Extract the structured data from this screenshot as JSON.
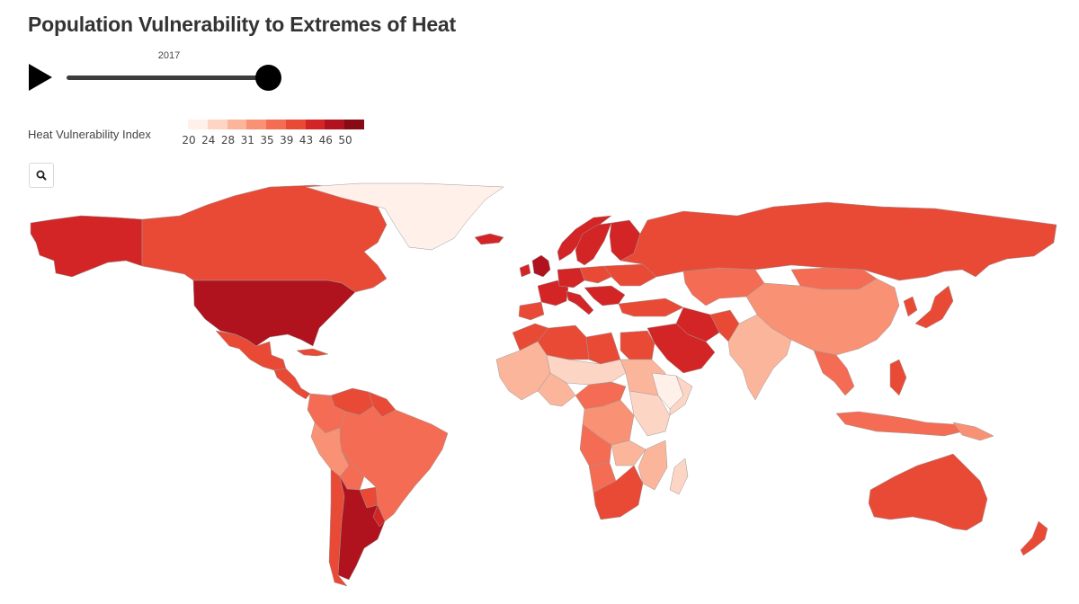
{
  "title": "Population Vulnerability to Extremes of Heat",
  "controls": {
    "play_icon": "play-icon",
    "slider_value": "2017",
    "slider_fraction": 1.0,
    "zoom_icon": "search-icon"
  },
  "legend": {
    "title": "Heat Vulnerability Index",
    "ticks": [
      "20",
      "24",
      "28",
      "31",
      "35",
      "39",
      "43",
      "46",
      "50"
    ],
    "colors": [
      "#fff0ea",
      "#fcd5c4",
      "#fbb59b",
      "#f99174",
      "#f46c53",
      "#e94a36",
      "#d42526",
      "#b0131e",
      "#870b14"
    ]
  },
  "map": {
    "projection": "equirectangular",
    "regions": [
      {
        "name": "Alaska",
        "index": 46
      },
      {
        "name": "Canada",
        "index": 42
      },
      {
        "name": "Greenland",
        "index": 20
      },
      {
        "name": "Iceland",
        "index": 44
      },
      {
        "name": "United States",
        "index": 47
      },
      {
        "name": "Mexico",
        "index": 42
      },
      {
        "name": "Central America",
        "index": 42
      },
      {
        "name": "Cuba",
        "index": 40
      },
      {
        "name": "Venezuela",
        "index": 43
      },
      {
        "name": "Colombia",
        "index": 37
      },
      {
        "name": "Guianas",
        "index": 40
      },
      {
        "name": "Brazil",
        "index": 37
      },
      {
        "name": "Peru",
        "index": 33
      },
      {
        "name": "Bolivia",
        "index": 36
      },
      {
        "name": "Paraguay",
        "index": 40
      },
      {
        "name": "Chile",
        "index": 43
      },
      {
        "name": "Argentina",
        "index": 47
      },
      {
        "name": "Uruguay",
        "index": 44
      },
      {
        "name": "Norway",
        "index": 44
      },
      {
        "name": "Sweden",
        "index": 46
      },
      {
        "name": "Finland",
        "index": 44
      },
      {
        "name": "United Kingdom",
        "index": 48
      },
      {
        "name": "Ireland",
        "index": 46
      },
      {
        "name": "France",
        "index": 44
      },
      {
        "name": "Spain",
        "index": 42
      },
      {
        "name": "Germany",
        "index": 45
      },
      {
        "name": "Poland",
        "index": 43
      },
      {
        "name": "Italy",
        "index": 44
      },
      {
        "name": "Balkans",
        "index": 45
      },
      {
        "name": "Ukraine",
        "index": 42
      },
      {
        "name": "Russia",
        "index": 42
      },
      {
        "name": "Turkey",
        "index": 43
      },
      {
        "name": "Kazakhstan",
        "index": 38
      },
      {
        "name": "Mongolia",
        "index": 37
      },
      {
        "name": "China",
        "index": 34
      },
      {
        "name": "Iran",
        "index": 44
      },
      {
        "name": "Arabian Peninsula",
        "index": 44
      },
      {
        "name": "Pakistan",
        "index": 42
      },
      {
        "name": "India",
        "index": 31
      },
      {
        "name": "Southeast Asia",
        "index": 37
      },
      {
        "name": "Japan",
        "index": 43
      },
      {
        "name": "Korea",
        "index": 42
      },
      {
        "name": "Indonesia",
        "index": 37
      },
      {
        "name": "Philippines",
        "index": 40
      },
      {
        "name": "Papua New Guinea",
        "index": 33
      },
      {
        "name": "Australia",
        "index": 42
      },
      {
        "name": "New Zealand",
        "index": 42
      },
      {
        "name": "Morocco",
        "index": 42
      },
      {
        "name": "Algeria",
        "index": 42
      },
      {
        "name": "Libya",
        "index": 41
      },
      {
        "name": "Egypt",
        "index": 43
      },
      {
        "name": "West Africa Coast",
        "index": 31
      },
      {
        "name": "Sahel",
        "index": 26
      },
      {
        "name": "Sudan",
        "index": 30
      },
      {
        "name": "Ethiopia",
        "index": 22
      },
      {
        "name": "Somalia",
        "index": 27
      },
      {
        "name": "Nigeria",
        "index": 29
      },
      {
        "name": "Central Africa",
        "index": 36
      },
      {
        "name": "DR Congo",
        "index": 33
      },
      {
        "name": "East Africa",
        "index": 25
      },
      {
        "name": "Angola",
        "index": 37
      },
      {
        "name": "Zambia",
        "index": 31
      },
      {
        "name": "Mozambique",
        "index": 29
      },
      {
        "name": "Namibia",
        "index": 38
      },
      {
        "name": "South Africa",
        "index": 42
      },
      {
        "name": "Madagascar",
        "index": 27
      }
    ]
  }
}
